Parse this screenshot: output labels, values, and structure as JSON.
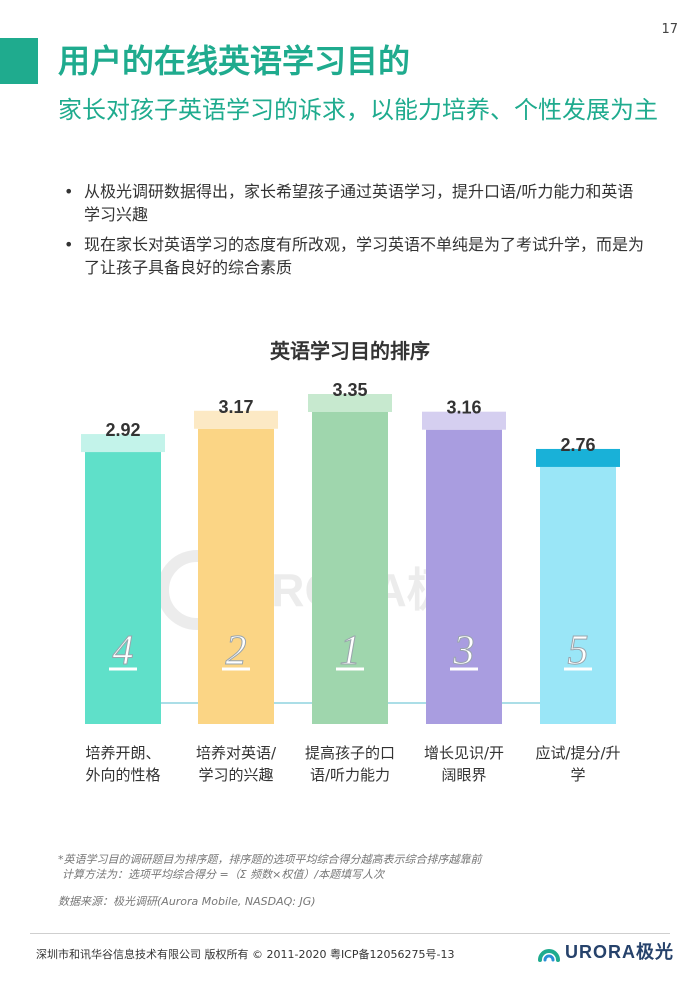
{
  "page": {
    "number": "17"
  },
  "header": {
    "title": "用户的在线英语学习目的",
    "subtitle": "家长对孩子英语学习的诉求，以能力培养、个性发展为主"
  },
  "bullets": [
    "从极光调研数据得出，家长希望孩子通过英语学习，提升口语/听力能力和英语学习兴趣",
    "现在家长对英语学习的态度有所改观，学习英语不单纯是为了考试升学，而是为了让孩子具备良好的综合素质"
  ],
  "chart_data": {
    "type": "bar",
    "title": "英语学习目的排序",
    "categories": [
      "培养开朗、外向的性格",
      "培养对英语/学习的兴趣",
      "提高孩子的口语/听力能力",
      "增长见识/开阔眼界",
      "应试/提分/升学"
    ],
    "category_lines": [
      [
        "培养开朗、",
        "外向的性格"
      ],
      [
        "培养对英语/",
        "学习的兴趣"
      ],
      [
        "提高孩子的口",
        "语/听力能力"
      ],
      [
        "增长见识/开",
        "阔眼界"
      ],
      [
        "应试/提分/升",
        "学"
      ]
    ],
    "values": [
      2.92,
      3.17,
      3.35,
      3.16,
      2.76
    ],
    "value_labels": [
      "2.92",
      "3.17",
      "3.35",
      "3.16",
      "2.76"
    ],
    "ranks": [
      "4",
      "2",
      "1",
      "3",
      "5"
    ],
    "colors": [
      "#5fe0c9",
      "#fbd585",
      "#9fd6ad",
      "#a99de0",
      "#9ae6f7"
    ],
    "cap_colors": [
      "#c3f3ea",
      "#fce9c4",
      "#c7e9cf",
      "#d5cff0",
      "#19b1d8"
    ],
    "ylim": [
      0,
      3.5
    ],
    "grid": false,
    "watermark": "URORA极光"
  },
  "footnotes": {
    "note1": "*英语学习目的调研题目为排序题，排序题的选项平均综合得分越高表示综合排序越靠前",
    "note2": "计算方法为：选项平均综合得分 =（Σ 频数×权值）/本题填写人次",
    "source": "数据来源：极光调研(Aurora Mobile, NASDAQ: JG)"
  },
  "footer": {
    "company": "深圳市和讯华谷信息技术有限公司 版权所有 © 2011-2020 粤ICP备12056275号-13",
    "logo_text": "URORA极光",
    "brand_color": "#1fab8e"
  }
}
